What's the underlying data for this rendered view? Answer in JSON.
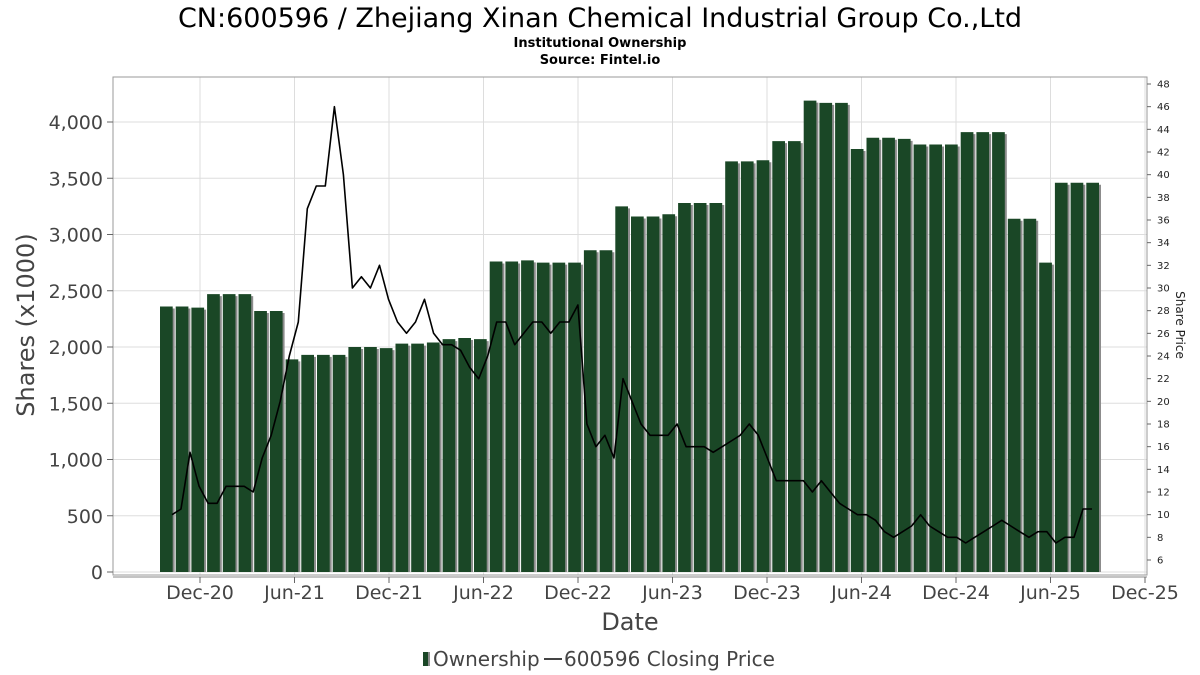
{
  "header": {
    "title": "CN:600596 / Zhejiang Xinan Chemical Industrial Group Co.,Ltd",
    "subtitle": "Institutional Ownership",
    "source": "Source: Fintel.io"
  },
  "colors": {
    "bar": "#1a4726",
    "bar_shadow": "#8c8c8c",
    "line": "#000000",
    "grid": "#dddddd",
    "axis_text": "#444444"
  },
  "chart_data": {
    "type": "bar",
    "title": "CN:600596 / Zhejiang Xinan Chemical Industrial Group Co.,Ltd",
    "xlabel": "Date",
    "ylabel": "Shares (x1000)",
    "y2label": "Share Price",
    "ylim": [
      0,
      4400
    ],
    "y2lim": [
      5,
      48.5
    ],
    "yticks": [
      0,
      500,
      1000,
      1500,
      2000,
      2500,
      3000,
      3500,
      4000
    ],
    "ytick_labels": [
      "0",
      "500",
      "1,000",
      "1,500",
      "2,000",
      "2,500",
      "3,000",
      "3,500",
      "4,000"
    ],
    "y2ticks": [
      6,
      8,
      10,
      12,
      14,
      16,
      18,
      20,
      22,
      24,
      26,
      28,
      30,
      32,
      34,
      36,
      38,
      40,
      42,
      44,
      46,
      48
    ],
    "y2tick_labels": [
      "6",
      "8",
      "10",
      "12",
      "14",
      "16",
      "18",
      "20",
      "22",
      "24",
      "26",
      "28",
      "30",
      "32",
      "34",
      "36",
      "38",
      "40",
      "42",
      "44",
      "46",
      "48"
    ],
    "xticks": [
      "Dec-20",
      "Jun-21",
      "Dec-21",
      "Jun-22",
      "Dec-22",
      "Jun-23",
      "Dec-23",
      "Jun-24",
      "Dec-24",
      "Jun-25",
      "Dec-25"
    ],
    "grid": true,
    "legend_position": "bottom-center",
    "series": [
      {
        "name": "Ownership",
        "type": "bar",
        "values": [
          2360,
          2360,
          2350,
          2470,
          2470,
          2470,
          2320,
          2320,
          1890,
          1930,
          1930,
          1930,
          2000,
          2000,
          1990,
          2030,
          2030,
          2040,
          2070,
          2080,
          2070,
          2760,
          2760,
          2770,
          2750,
          2750,
          2750,
          2860,
          2860,
          3250,
          3160,
          3160,
          3180,
          3280,
          3280,
          3280,
          3650,
          3650,
          3660,
          3830,
          3830,
          4190,
          4170,
          4170,
          3760,
          3860,
          3860,
          3850,
          3800,
          3800,
          3800,
          3910,
          3910,
          3910,
          3140,
          3140,
          2750,
          3460,
          3460,
          3460
        ]
      },
      {
        "name": "600596 Closing Price",
        "type": "line",
        "values": [
          10,
          10.5,
          15.5,
          12.5,
          11,
          11,
          12.5,
          12.5,
          12.5,
          12,
          15,
          17,
          20,
          24,
          27,
          37,
          39,
          39,
          46,
          40,
          30,
          31,
          30,
          32,
          29,
          27,
          26,
          27,
          29,
          26,
          25,
          25,
          24.5,
          23,
          22,
          24,
          27,
          27,
          25,
          26,
          27,
          27,
          26,
          27,
          27,
          28.5,
          18,
          16,
          17,
          15,
          22,
          20,
          18,
          17,
          17,
          17,
          18,
          16,
          16,
          16,
          15.5,
          16,
          16.5,
          17,
          18,
          17,
          15,
          13,
          13,
          13,
          13,
          12,
          13,
          12,
          11,
          10.5,
          10,
          10,
          9.5,
          8.5,
          8,
          8.5,
          9,
          10,
          9,
          8.5,
          8,
          8,
          7.5,
          8,
          8.5,
          9,
          9.5,
          9,
          8.5,
          8,
          8.5,
          8.5,
          7.5,
          8,
          8,
          10.5,
          10.5
        ]
      }
    ]
  },
  "legend": {
    "items": [
      "Ownership",
      "600596 Closing Price"
    ]
  }
}
